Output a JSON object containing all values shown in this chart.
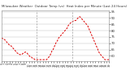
{
  "title": "Milwaukee Weather  Outdoor Temp (vs)  Heat Index per Minute (Last 24 Hours)",
  "bg_color": "#ffffff",
  "line_color": "#dd0000",
  "grid_color": "#bbbbbb",
  "ylim": [
    56,
    96
  ],
  "yticks": [
    60,
    65,
    70,
    75,
    80,
    85,
    90,
    95
  ],
  "vlines_x": [
    33,
    66
  ],
  "x_data": [
    0,
    1,
    2,
    3,
    4,
    5,
    6,
    7,
    8,
    9,
    10,
    11,
    12,
    13,
    14,
    15,
    16,
    17,
    18,
    19,
    20,
    21,
    22,
    23,
    24,
    25,
    26,
    27,
    28,
    29,
    30,
    31,
    32,
    33,
    34,
    35,
    36,
    37,
    38,
    39,
    40,
    41,
    42,
    43,
    44,
    45,
    46,
    47,
    48,
    49,
    50,
    51,
    52,
    53,
    54,
    55,
    56,
    57,
    58,
    59,
    60,
    61,
    62,
    63,
    64,
    65,
    66,
    67,
    68,
    69,
    70,
    71,
    72,
    73,
    74,
    75,
    76,
    77,
    78,
    79,
    80,
    81,
    82,
    83,
    84,
    85,
    86,
    87,
    88,
    89,
    90,
    91,
    92,
    93,
    94,
    95,
    96,
    97,
    98,
    99,
    100
  ],
  "y_data": [
    74,
    74,
    73,
    73,
    72,
    71,
    70,
    69,
    68,
    68,
    67,
    66,
    65,
    64,
    63,
    62,
    62,
    61,
    61,
    61,
    62,
    62,
    63,
    63,
    62,
    61,
    60,
    59,
    59,
    58,
    58,
    57,
    57,
    57,
    57,
    57,
    57,
    57,
    57,
    57,
    57,
    57,
    57,
    58,
    59,
    60,
    62,
    64,
    65,
    67,
    69,
    71,
    72,
    74,
    75,
    76,
    77,
    78,
    79,
    80,
    81,
    82,
    84,
    85,
    86,
    87,
    87,
    88,
    88,
    88,
    89,
    90,
    91,
    91,
    90,
    89,
    88,
    87,
    86,
    85,
    84,
    82,
    80,
    78,
    76,
    74,
    72,
    70,
    68,
    66,
    64,
    62,
    61,
    60,
    59,
    58,
    57,
    57,
    57,
    57,
    57
  ],
  "n_xticks": 40,
  "title_fontsize": 2.8,
  "tick_fontsize": 2.5,
  "ytick_fontsize": 2.8,
  "linewidth": 0.7
}
